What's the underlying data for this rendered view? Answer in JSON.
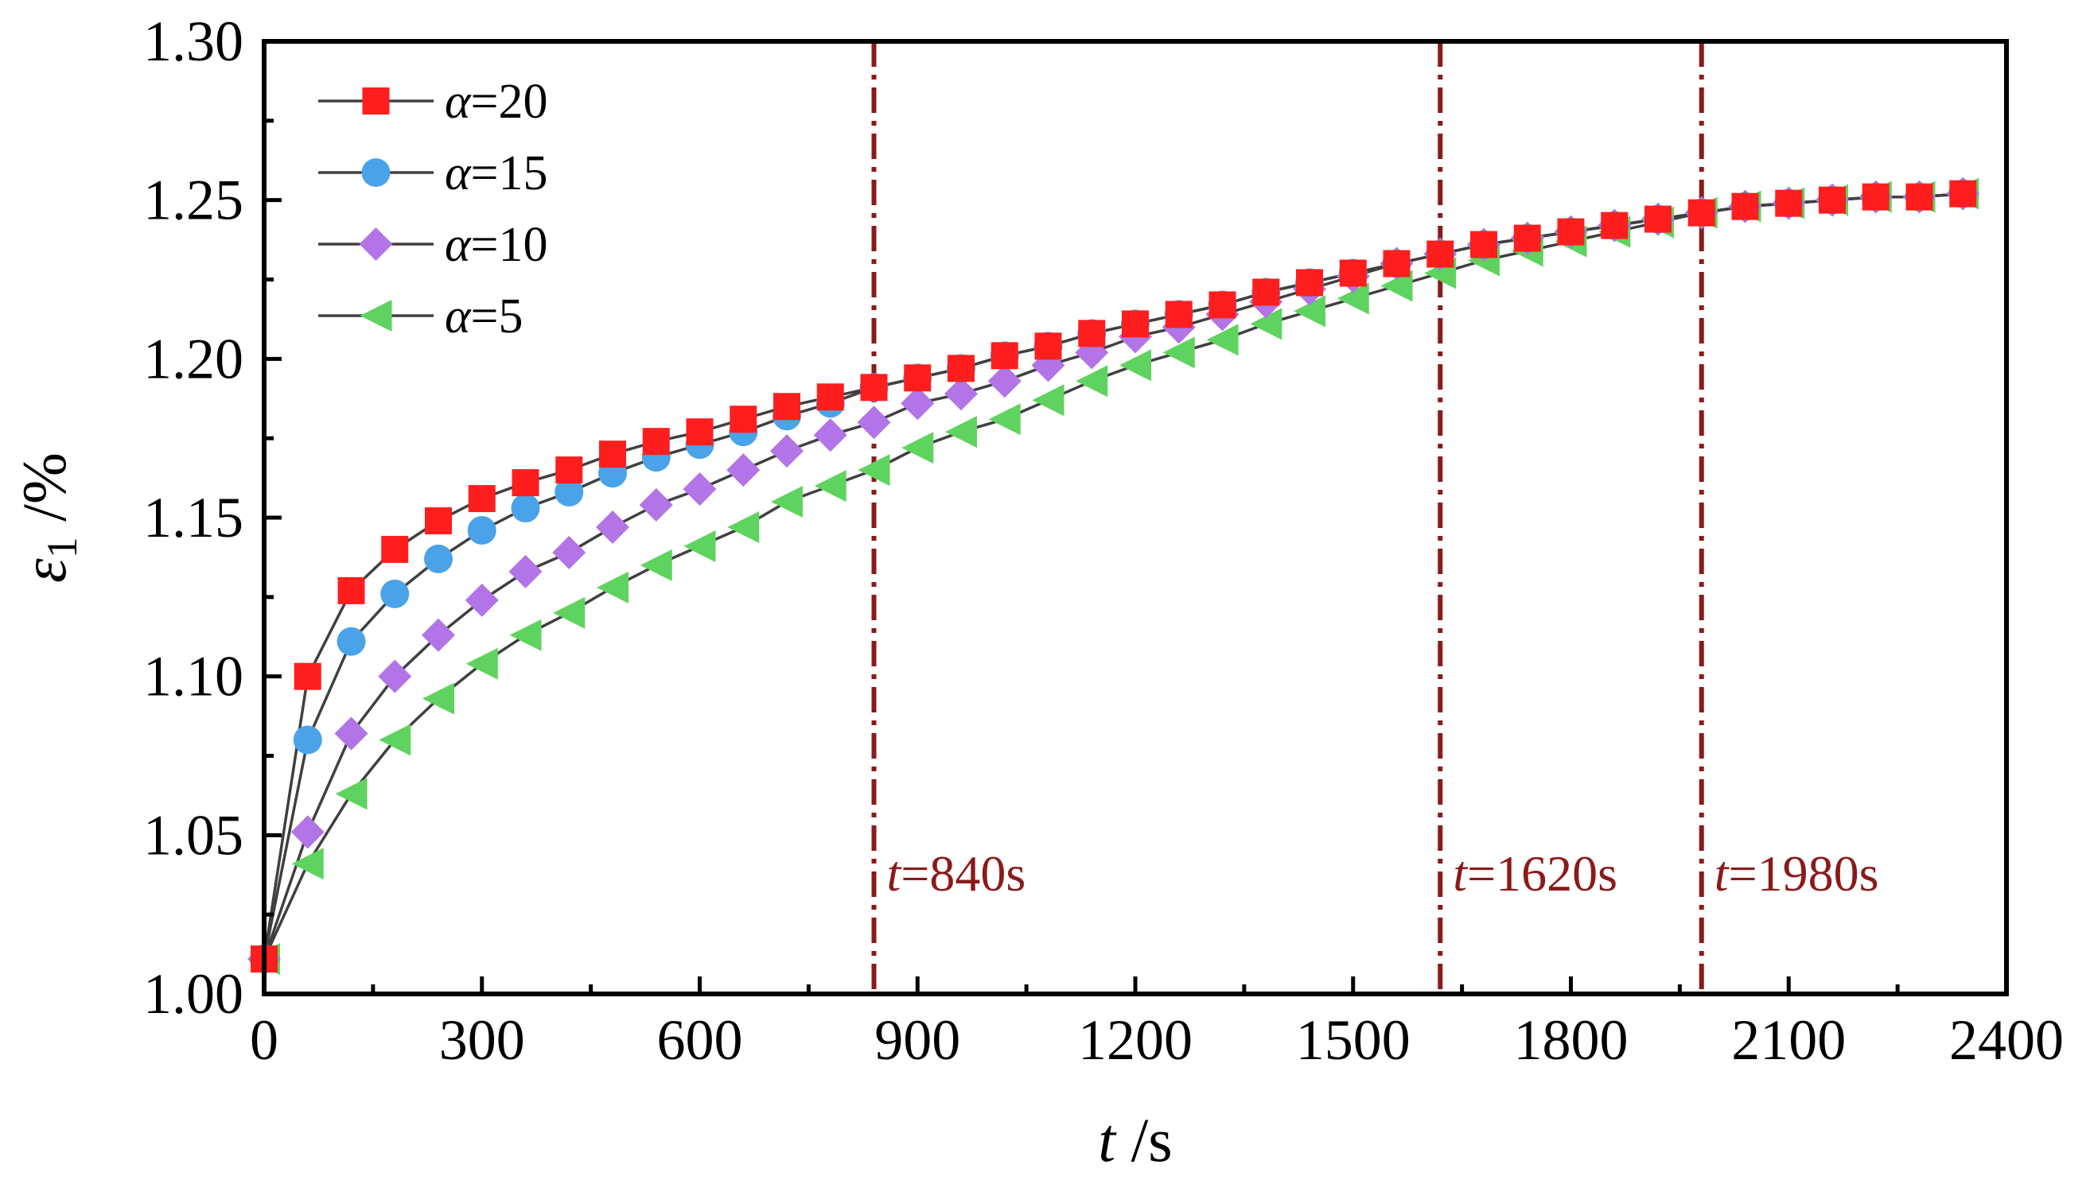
{
  "chart_data": {
    "type": "line",
    "title": "",
    "xlabel": {
      "var": "t",
      "unit": " /s"
    },
    "ylabel": {
      "var": "ε",
      "sub": "1",
      "unit": " /%"
    },
    "xlim": [
      0,
      2400
    ],
    "ylim": [
      1.0,
      1.3
    ],
    "xticks": [
      0,
      300,
      600,
      900,
      1200,
      1500,
      1800,
      2100,
      2400
    ],
    "xtick_labels": [
      "0",
      "300",
      "600",
      "900",
      "1200",
      "1500",
      "1800",
      "2100",
      "2400"
    ],
    "yticks": [
      1.0,
      1.05,
      1.1,
      1.15,
      1.2,
      1.25,
      1.3
    ],
    "ytick_labels": [
      "1.00",
      "1.05",
      "1.10",
      "1.15",
      "1.20",
      "1.25",
      "1.30"
    ],
    "grid": false,
    "legend_position": "top-left",
    "line_color": "#404040",
    "x": [
      0,
      60,
      120,
      180,
      240,
      300,
      360,
      420,
      480,
      540,
      600,
      660,
      720,
      780,
      840,
      900,
      960,
      1020,
      1080,
      1140,
      1200,
      1260,
      1320,
      1380,
      1440,
      1500,
      1560,
      1620,
      1680,
      1740,
      1800,
      1860,
      1920,
      1980,
      2040,
      2100,
      2160,
      2220,
      2280,
      2340
    ],
    "series": [
      {
        "name": "α=20",
        "greek": "α",
        "value_label": "=20",
        "marker": "square",
        "color": "#ff1e1e",
        "values": [
          1.011,
          1.1,
          1.127,
          1.14,
          1.149,
          1.156,
          1.161,
          1.165,
          1.17,
          1.174,
          1.177,
          1.181,
          1.185,
          1.188,
          1.191,
          1.194,
          1.197,
          1.201,
          1.204,
          1.208,
          1.211,
          1.214,
          1.217,
          1.221,
          1.224,
          1.227,
          1.23,
          1.233,
          1.236,
          1.238,
          1.24,
          1.242,
          1.244,
          1.246,
          1.248,
          1.249,
          1.25,
          1.251,
          1.251,
          1.252
        ]
      },
      {
        "name": "α=15",
        "greek": "α",
        "value_label": "=15",
        "marker": "circle",
        "color": "#4aa3e8",
        "values": [
          1.011,
          1.08,
          1.111,
          1.126,
          1.137,
          1.146,
          1.153,
          1.158,
          1.164,
          1.169,
          1.173,
          1.177,
          1.182,
          1.186,
          1.191,
          1.194,
          1.197,
          1.201,
          1.204,
          1.208,
          1.211,
          1.214,
          1.217,
          1.221,
          1.224,
          1.227,
          1.23,
          1.233,
          1.236,
          1.238,
          1.24,
          1.242,
          1.244,
          1.246,
          1.248,
          1.249,
          1.25,
          1.251,
          1.251,
          1.252
        ]
      },
      {
        "name": "α=10",
        "greek": "α",
        "value_label": "=10",
        "marker": "diamond",
        "color": "#b274e6",
        "values": [
          1.011,
          1.051,
          1.082,
          1.1,
          1.113,
          1.124,
          1.133,
          1.139,
          1.147,
          1.154,
          1.159,
          1.165,
          1.171,
          1.176,
          1.18,
          1.186,
          1.189,
          1.193,
          1.198,
          1.202,
          1.207,
          1.21,
          1.214,
          1.218,
          1.222,
          1.226,
          1.23,
          1.233,
          1.236,
          1.238,
          1.24,
          1.242,
          1.244,
          1.246,
          1.248,
          1.249,
          1.25,
          1.251,
          1.251,
          1.252
        ]
      },
      {
        "name": "α=5",
        "greek": "α",
        "value_label": "=5",
        "marker": "triangle-left",
        "color": "#5fd35f",
        "values": [
          1.011,
          1.041,
          1.063,
          1.08,
          1.093,
          1.104,
          1.113,
          1.12,
          1.128,
          1.135,
          1.141,
          1.147,
          1.155,
          1.16,
          1.165,
          1.172,
          1.177,
          1.181,
          1.187,
          1.193,
          1.198,
          1.202,
          1.206,
          1.211,
          1.215,
          1.219,
          1.223,
          1.227,
          1.231,
          1.234,
          1.237,
          1.24,
          1.243,
          1.246,
          1.248,
          1.249,
          1.25,
          1.251,
          1.251,
          1.252
        ]
      }
    ],
    "annotations": [
      {
        "x": 840,
        "prefix": "t",
        "label": "=840s",
        "color": "#8b1a1a"
      },
      {
        "x": 1620,
        "prefix": "t",
        "label": "=1620s",
        "color": "#8b1a1a"
      },
      {
        "x": 1980,
        "prefix": "t",
        "label": "=1980s",
        "color": "#8b1a1a"
      }
    ]
  }
}
